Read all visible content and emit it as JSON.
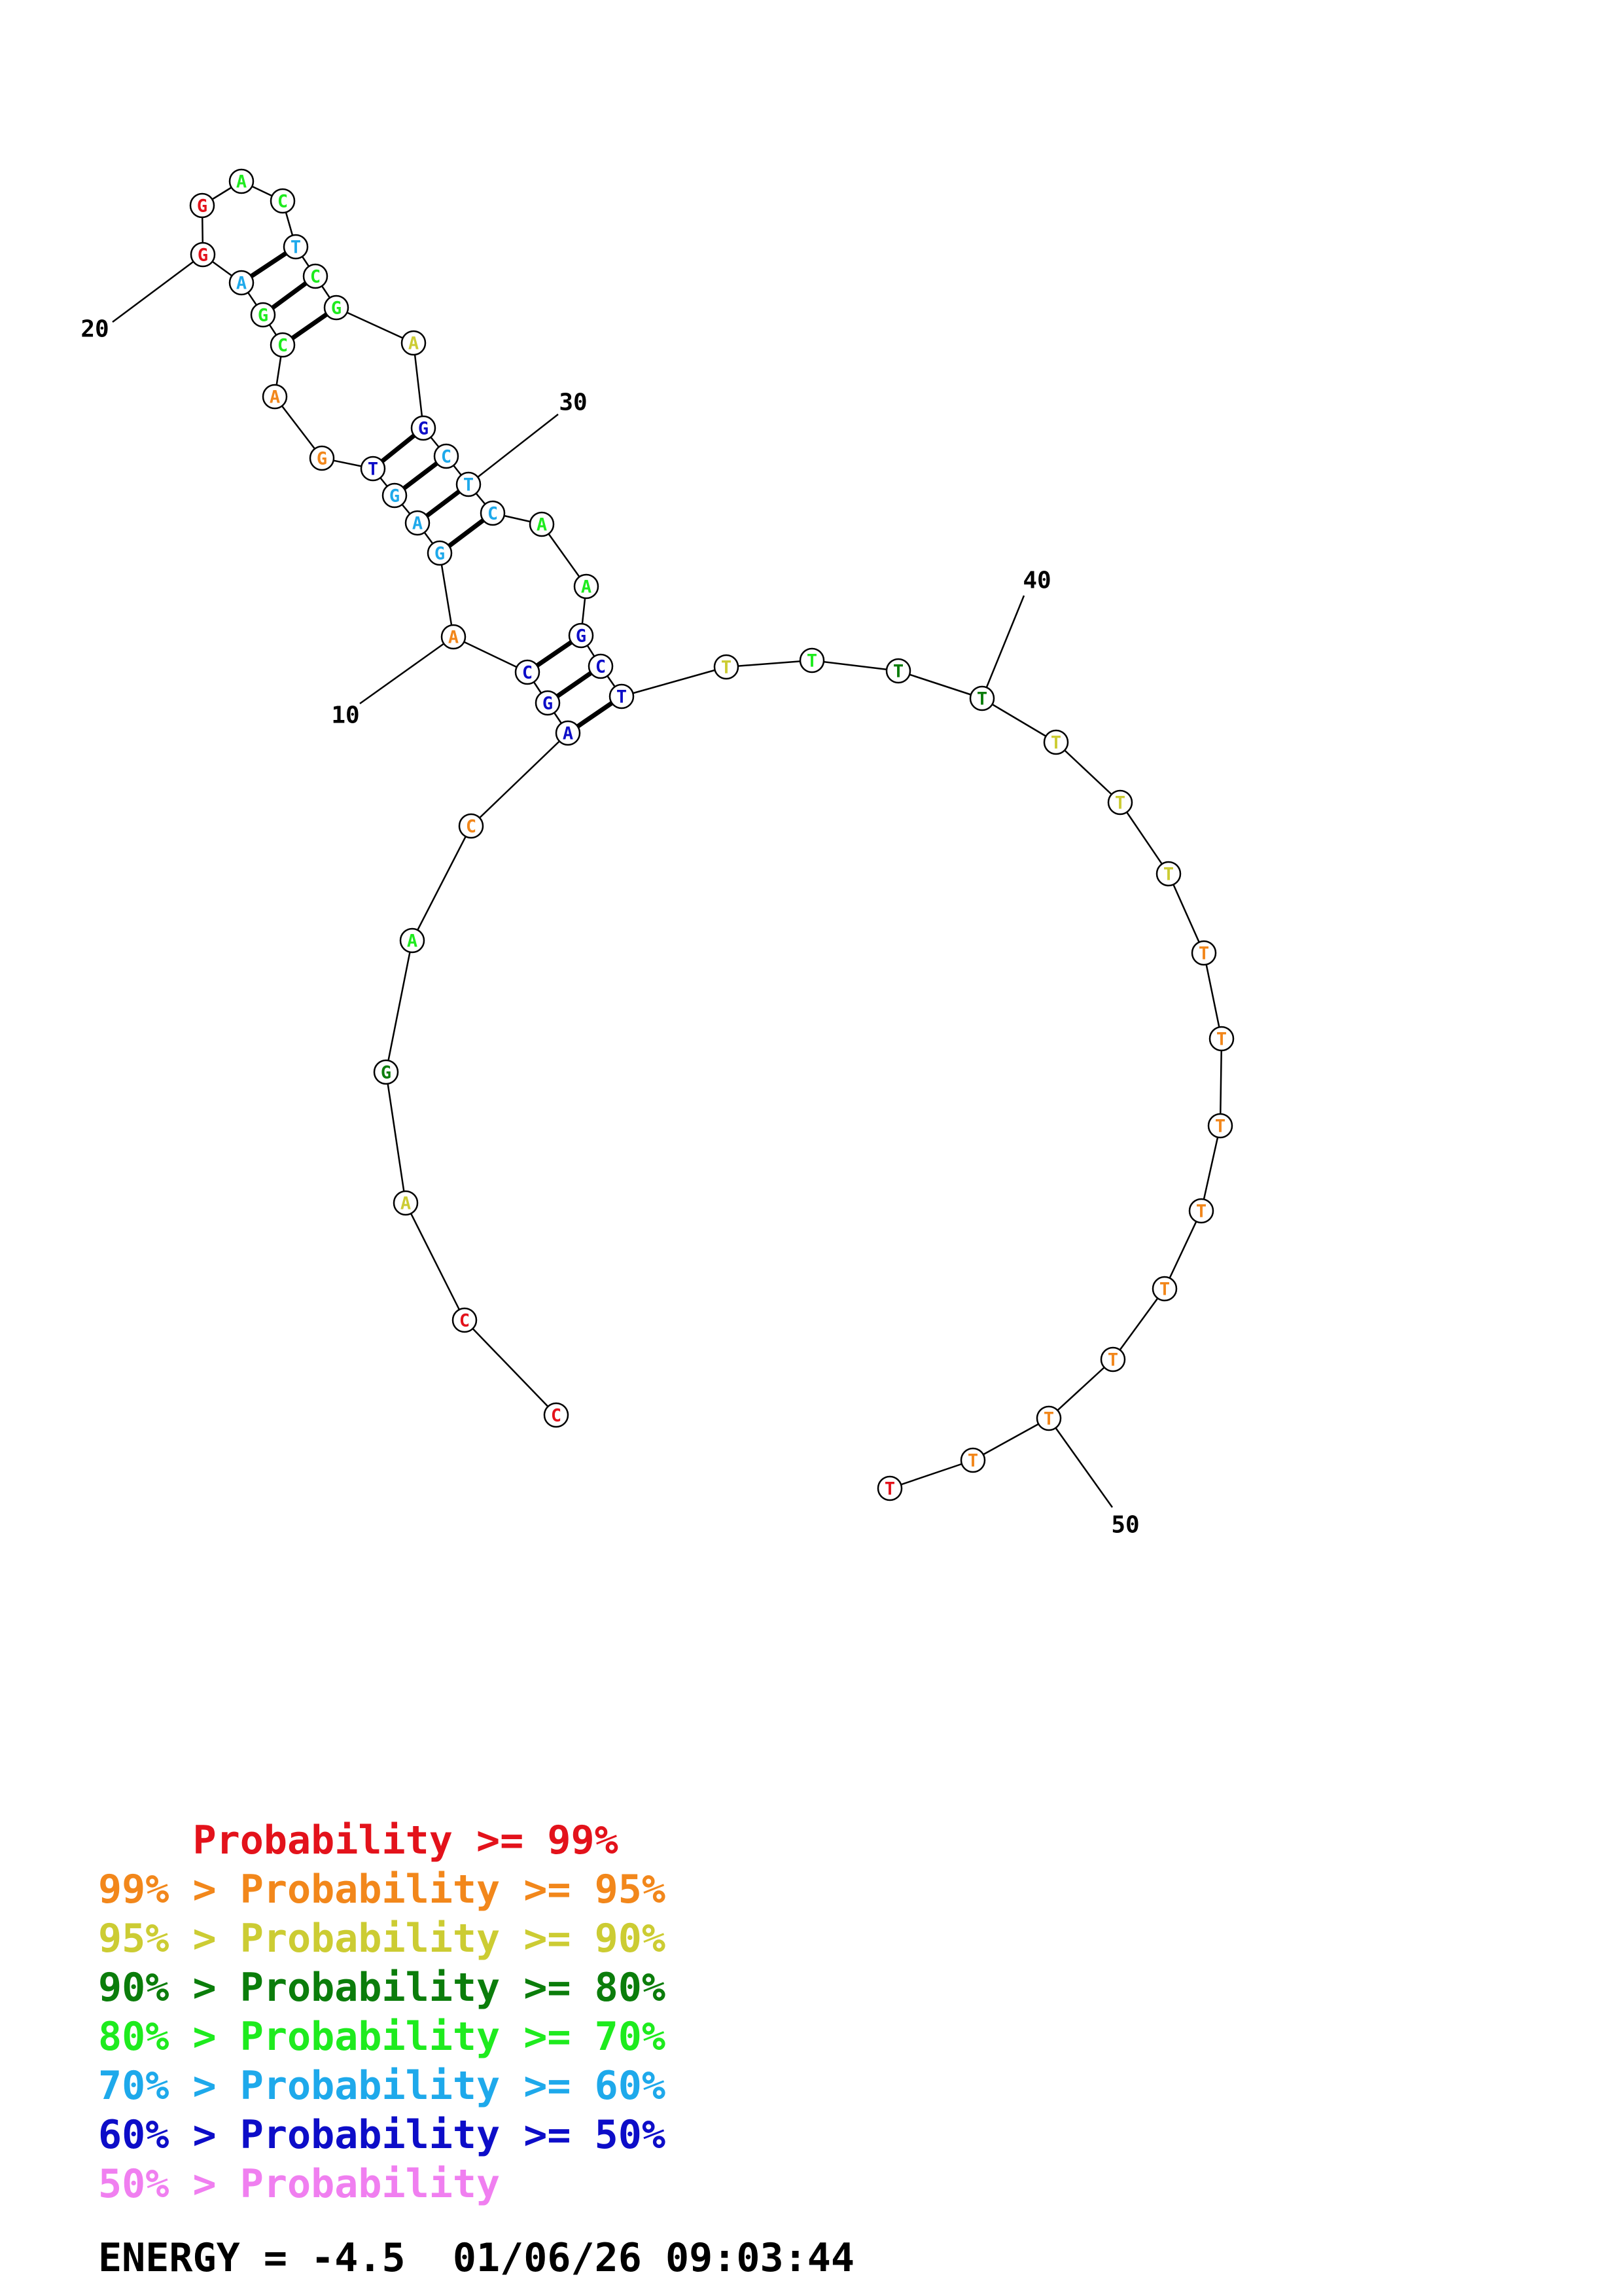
{
  "colors": {
    "p99": "#e3121b",
    "p95": "#f2871b",
    "p90": "#cccc33",
    "p80": "#0b7d0b",
    "p70": "#1eeb1e",
    "p60": "#1ea9eb",
    "p50": "#0d0dc8",
    "plow": "#f07ff0"
  },
  "nucleotides": [
    {
      "n": 1,
      "base": "C",
      "color": "p99"
    },
    {
      "n": 2,
      "base": "C",
      "color": "p99"
    },
    {
      "n": 3,
      "base": "A",
      "color": "p90"
    },
    {
      "n": 4,
      "base": "G",
      "color": "p80"
    },
    {
      "n": 5,
      "base": "A",
      "color": "p70"
    },
    {
      "n": 6,
      "base": "C",
      "color": "p95"
    },
    {
      "n": 7,
      "base": "A",
      "color": "p50"
    },
    {
      "n": 8,
      "base": "G",
      "color": "p50"
    },
    {
      "n": 9,
      "base": "C",
      "color": "p50"
    },
    {
      "n": 10,
      "base": "A",
      "color": "p95"
    },
    {
      "n": 11,
      "base": "G",
      "color": "p60"
    },
    {
      "n": 12,
      "base": "A",
      "color": "p60"
    },
    {
      "n": 13,
      "base": "G",
      "color": "p60"
    },
    {
      "n": 14,
      "base": "T",
      "color": "p50"
    },
    {
      "n": 15,
      "base": "G",
      "color": "p95"
    },
    {
      "n": 16,
      "base": "A",
      "color": "p95"
    },
    {
      "n": 17,
      "base": "C",
      "color": "p70"
    },
    {
      "n": 18,
      "base": "G",
      "color": "p70"
    },
    {
      "n": 19,
      "base": "A",
      "color": "p60"
    },
    {
      "n": 20,
      "base": "G",
      "color": "p99"
    },
    {
      "n": 21,
      "base": "G",
      "color": "p99"
    },
    {
      "n": 22,
      "base": "A",
      "color": "p70"
    },
    {
      "n": 23,
      "base": "C",
      "color": "p70"
    },
    {
      "n": 24,
      "base": "T",
      "color": "p60"
    },
    {
      "n": 25,
      "base": "C",
      "color": "p70"
    },
    {
      "n": 26,
      "base": "G",
      "color": "p70"
    },
    {
      "n": 27,
      "base": "A",
      "color": "p90"
    },
    {
      "n": 28,
      "base": "G",
      "color": "p50"
    },
    {
      "n": 29,
      "base": "C",
      "color": "p60"
    },
    {
      "n": 30,
      "base": "T",
      "color": "p60"
    },
    {
      "n": 31,
      "base": "C",
      "color": "p60"
    },
    {
      "n": 32,
      "base": "A",
      "color": "p70"
    },
    {
      "n": 33,
      "base": "A",
      "color": "p70"
    },
    {
      "n": 34,
      "base": "G",
      "color": "p50"
    },
    {
      "n": 35,
      "base": "C",
      "color": "p50"
    },
    {
      "n": 36,
      "base": "T",
      "color": "p50"
    },
    {
      "n": 37,
      "base": "T",
      "color": "p90"
    },
    {
      "n": 38,
      "base": "T",
      "color": "p70"
    },
    {
      "n": 39,
      "base": "T",
      "color": "p80"
    },
    {
      "n": 40,
      "base": "T",
      "color": "p80"
    },
    {
      "n": 41,
      "base": "T",
      "color": "p90"
    },
    {
      "n": 42,
      "base": "T",
      "color": "p90"
    },
    {
      "n": 43,
      "base": "T",
      "color": "p90"
    },
    {
      "n": 44,
      "base": "T",
      "color": "p95"
    },
    {
      "n": 45,
      "base": "T",
      "color": "p95"
    },
    {
      "n": 46,
      "base": "T",
      "color": "p95"
    },
    {
      "n": 47,
      "base": "T",
      "color": "p95"
    },
    {
      "n": 48,
      "base": "T",
      "color": "p95"
    },
    {
      "n": 49,
      "base": "T",
      "color": "p95"
    },
    {
      "n": 50,
      "base": "T",
      "color": "p95"
    },
    {
      "n": 51,
      "base": "T",
      "color": "p95"
    },
    {
      "n": 52,
      "base": "T",
      "color": "p99"
    }
  ],
  "pairs": [
    [
      7,
      36
    ],
    [
      8,
      35
    ],
    [
      9,
      34
    ],
    [
      11,
      31
    ],
    [
      12,
      30
    ],
    [
      13,
      29
    ],
    [
      14,
      28
    ],
    [
      17,
      26
    ],
    [
      18,
      25
    ],
    [
      19,
      24
    ]
  ],
  "index_labels": [
    {
      "n": 10,
      "text": "10"
    },
    {
      "n": 20,
      "text": "20"
    },
    {
      "n": 30,
      "text": "30"
    },
    {
      "n": 40,
      "text": "40"
    },
    {
      "n": 50,
      "text": "50"
    }
  ],
  "legend": [
    {
      "prefix": "    ",
      "label": "Probability >= 99%",
      "color": "p99"
    },
    {
      "prefix": "99% > ",
      "label": "Probability >= 95%",
      "color": "p95"
    },
    {
      "prefix": "95% > ",
      "label": "Probability >= 90%",
      "color": "p90"
    },
    {
      "prefix": "90% > ",
      "label": "Probability >= 80%",
      "color": "p80"
    },
    {
      "prefix": "80% > ",
      "label": "Probability >= 70%",
      "color": "p70"
    },
    {
      "prefix": "70% > ",
      "label": "Probability >= 60%",
      "color": "p60"
    },
    {
      "prefix": "60% > ",
      "label": "Probability >= 50%",
      "color": "p50"
    },
    {
      "prefix": "50% > ",
      "label": "Probability",
      "color": "plow"
    }
  ],
  "energy_text": "ENERGY = -4.5  01/06/26 09:03:44"
}
